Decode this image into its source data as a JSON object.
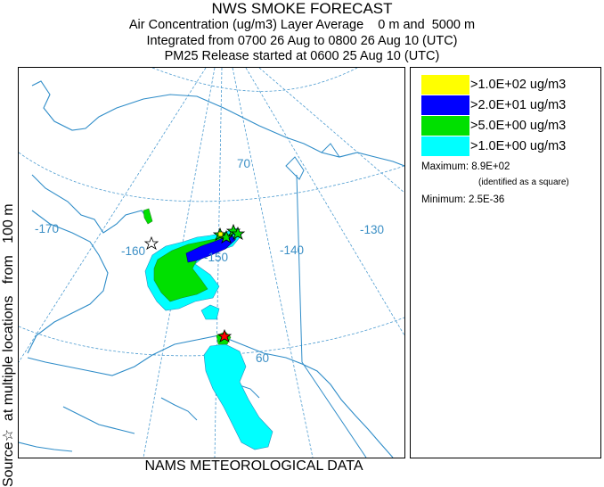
{
  "title": "NWS SMOKE FORECAST",
  "subtitle_1": "Air Concentration (ug/m3) Layer Average    0 m and  5000 m",
  "subtitle_2": "Integrated from 0700 26 Aug to 0800 26 Aug 10 (UTC)",
  "subtitle_3": "PM25 Release started at 0600 25 Aug 10 (UTC)",
  "side_label": "Source☆  at multiple locations   from   100 m",
  "bottom_label": "NAMS METEOROLOGICAL DATA",
  "map": {
    "labels": {
      "lon_170": "-170",
      "lon_160": "-160",
      "lon_150": "-150",
      "lon_140": "-140",
      "lon_130": "-130",
      "lat_70": "70",
      "lat_60": "60"
    },
    "colors": {
      "coast": "#2e8cc8",
      "grid": "#4c9bd0",
      "level_1": "#ffff00",
      "level_2": "#0000ff",
      "level_3": "#00e000",
      "level_4": "#00ffff"
    }
  },
  "legend": {
    "items": [
      {
        "label": ">1.0E+02 ug/m3",
        "color": "#ffff00"
      },
      {
        "label": ">2.0E+01 ug/m3",
        "color": "#0000ff"
      },
      {
        "label": ">5.0E+00 ug/m3",
        "color": "#00e000"
      },
      {
        "label": ">1.0E+00 ug/m3",
        "color": "#00ffff"
      }
    ],
    "maximum": "Maximum: 8.9E+02",
    "maximum_note": "(identified as a square)",
    "minimum": "Minimum: 2.5E-36"
  }
}
